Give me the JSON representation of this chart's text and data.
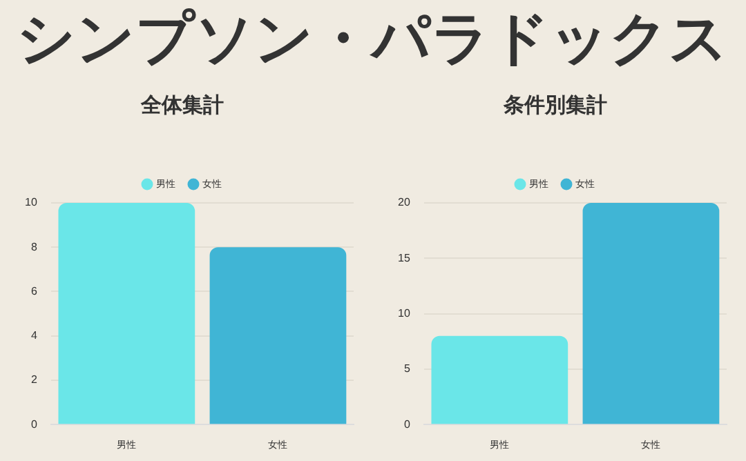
{
  "chart_data": [
    {
      "type": "other",
      "title": "シンプソン・パラドックス"
    },
    {
      "type": "bar",
      "title": "全体集計",
      "categories": [
        "男性",
        "女性"
      ],
      "series": [
        {
          "name": "男性",
          "color": "#6ae6e8",
          "values": [
            10,
            null
          ]
        },
        {
          "name": "女性",
          "color": "#40b5d5",
          "values": [
            null,
            8
          ]
        }
      ],
      "ylim": [
        0,
        10
      ],
      "yticks": [
        0,
        2,
        4,
        6,
        8,
        10
      ],
      "grid": "y",
      "legend": "top"
    },
    {
      "type": "bar",
      "title": "条件別集計",
      "categories": [
        "男性",
        "女性"
      ],
      "series": [
        {
          "name": "男性",
          "color": "#6ae6e8",
          "values": [
            8,
            null
          ]
        },
        {
          "name": "女性",
          "color": "#40b5d5",
          "values": [
            null,
            20
          ]
        }
      ],
      "ylim": [
        0,
        20
      ],
      "yticks": [
        0,
        5,
        10,
        15,
        20
      ],
      "grid": "y",
      "legend": "top"
    }
  ]
}
